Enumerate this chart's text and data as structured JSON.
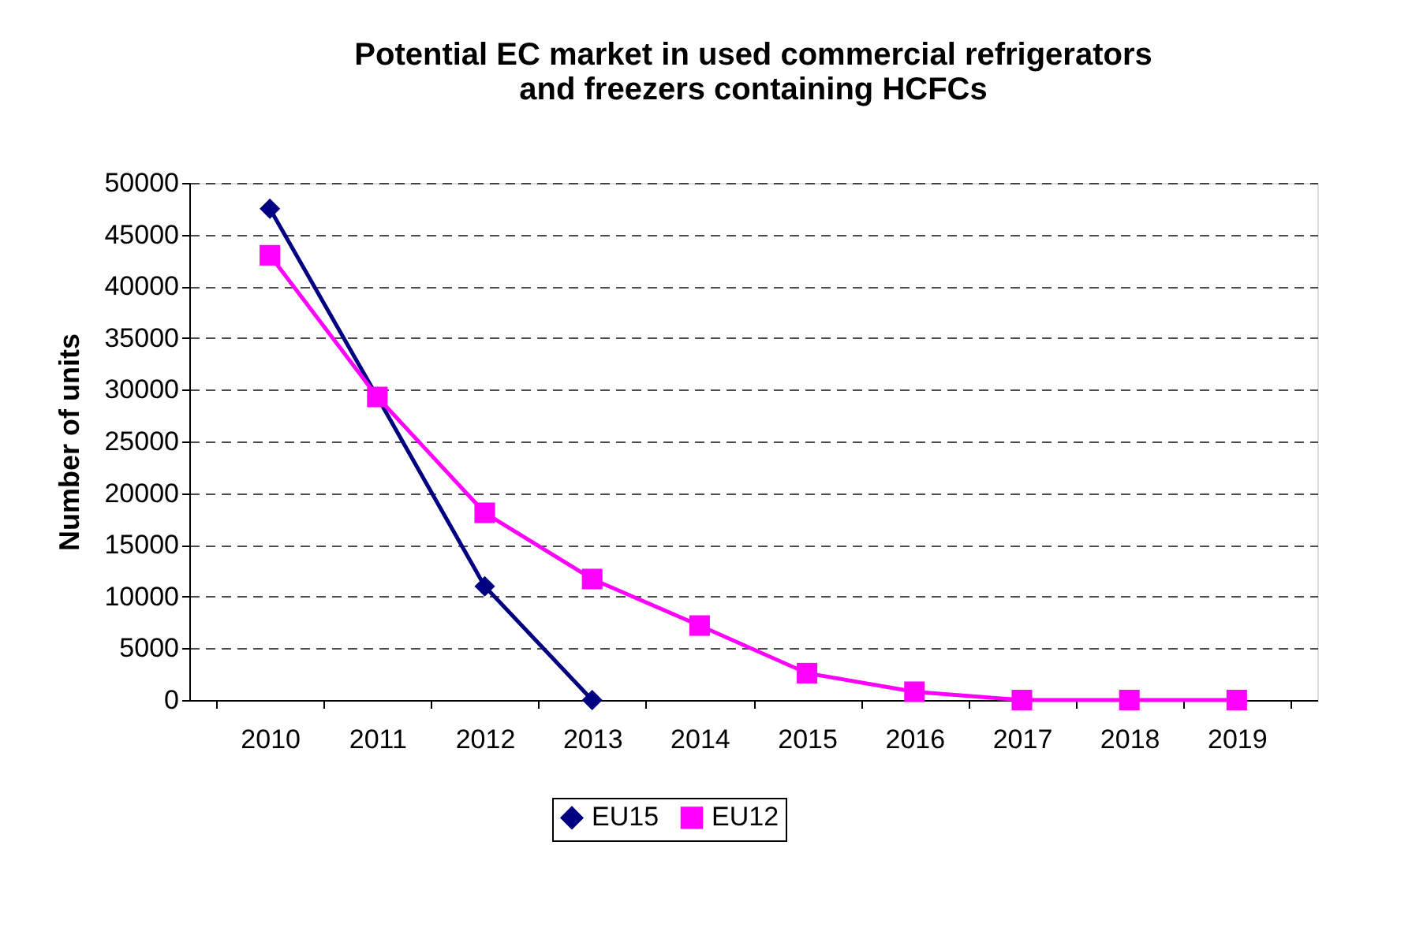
{
  "chart_data": {
    "type": "line",
    "title": "Potential EC market in used commercial refrigerators\nand freezers containing HCFCs",
    "ylabel": "Number of units",
    "categories": [
      "2010",
      "2011",
      "2012",
      "2013",
      "2014",
      "2015",
      "2016",
      "2017",
      "2018",
      "2019"
    ],
    "series": [
      {
        "name": "EU15",
        "color": "#000080",
        "marker": "diamond",
        "values": [
          47500,
          29300,
          11000,
          0,
          null,
          null,
          null,
          null,
          null,
          null
        ]
      },
      {
        "name": "EU12",
        "color": "#ff00ff",
        "marker": "square",
        "values": [
          43000,
          29300,
          18100,
          11700,
          7200,
          2600,
          800,
          0,
          0,
          0
        ]
      }
    ],
    "ylim": [
      0,
      50000
    ],
    "yticks": [
      0,
      5000,
      10000,
      15000,
      20000,
      25000,
      30000,
      35000,
      40000,
      45000,
      50000
    ],
    "grid": "y",
    "legend": "bottom",
    "line_style": "solid"
  }
}
